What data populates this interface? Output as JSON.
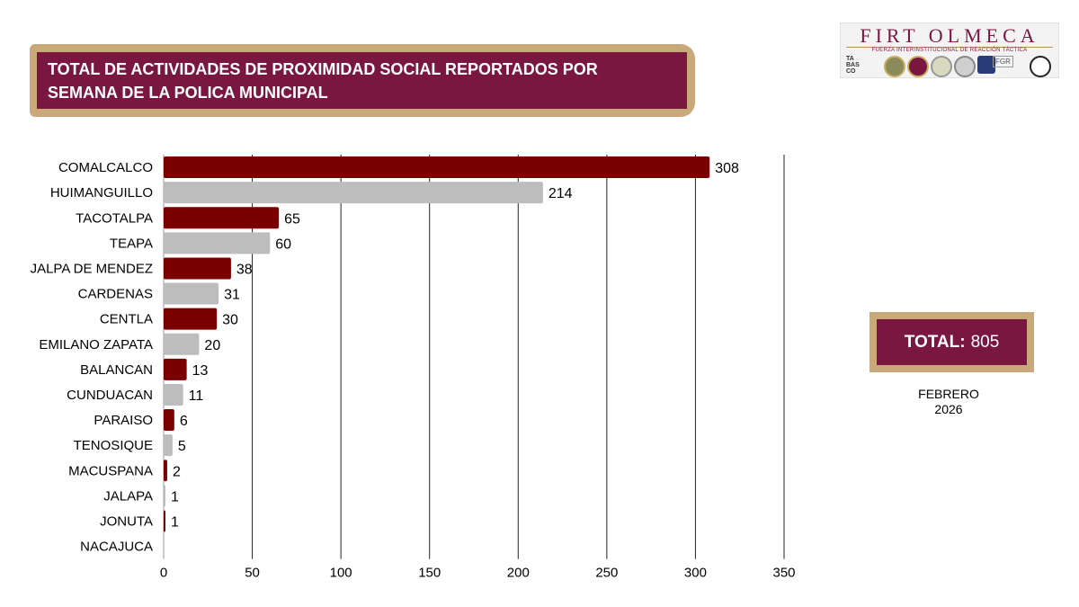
{
  "title": "TOTAL DE ACTIVIDADES DE PROXIMIDAD SOCIAL REPORTADOS POR\nSEMANA  DE LA POLICA MUNICIPAL",
  "logo": {
    "name": "FIRT OLMECA",
    "subtitle": "FUERZA INTERINSTITUCIONAL DE REACCIÓN TÁCTICA",
    "tabasco": "TA BAS CO",
    "fgr": "FGR"
  },
  "total": {
    "label": "TOTAL:",
    "value": "805"
  },
  "period": {
    "month": "FEBRERO",
    "year": "2026"
  },
  "colors": {
    "maroon": "#7a0000",
    "gray": "#bdbdbd",
    "brand": "#7a1741",
    "gold": "#c9a97a"
  },
  "chart_data": {
    "type": "bar",
    "orientation": "horizontal",
    "title": "TOTAL DE ACTIVIDADES DE PROXIMIDAD SOCIAL REPORTADOS POR SEMANA  DE LA POLICA MUNICIPAL",
    "categories": [
      "COMALCALCO",
      "HUIMANGUILLO",
      "TACOTALPA",
      "TEAPA",
      "JALPA DE MENDEZ",
      "CARDENAS",
      "CENTLA",
      "EMILANO ZAPATA",
      "BALANCAN",
      "CUNDUACAN",
      "PARAISO",
      "TENOSIQUE",
      "MACUSPANA",
      "JALAPA",
      "JONUTA",
      "NACAJUCA"
    ],
    "values": [
      308,
      214,
      65,
      60,
      38,
      31,
      30,
      20,
      13,
      11,
      6,
      5,
      2,
      1,
      1,
      null
    ],
    "data_labels": [
      "308",
      "214",
      "65",
      "60",
      "38",
      "31",
      "30",
      "20",
      "13",
      "11",
      "6",
      "5",
      "2",
      "1",
      "1",
      ""
    ],
    "bar_colors": [
      "maroon",
      "gray",
      "maroon",
      "gray",
      "maroon",
      "gray",
      "maroon",
      "gray",
      "maroon",
      "gray",
      "maroon",
      "gray",
      "maroon",
      "gray",
      "maroon",
      "gray"
    ],
    "xlim": [
      0,
      350
    ],
    "xticks": [
      0,
      50,
      100,
      150,
      200,
      250,
      300,
      350
    ],
    "grid": "vertical",
    "xlabel": "",
    "ylabel": ""
  }
}
